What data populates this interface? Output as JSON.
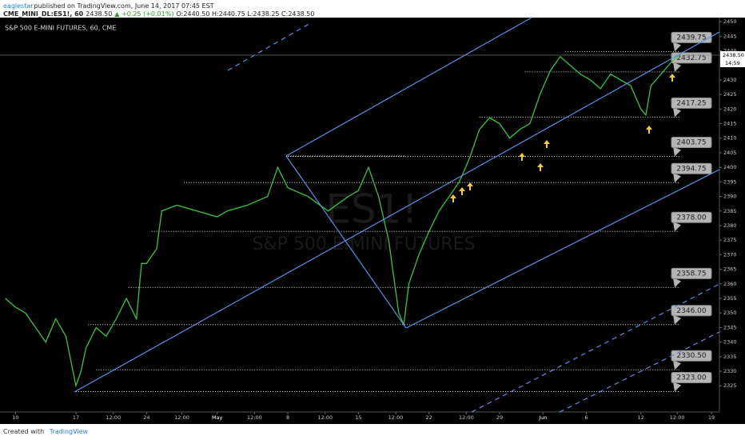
{
  "header": {
    "author": "eaglestar",
    "published": "published on TradingView.com, June 14, 2017 07:45 EST",
    "symbol": "CME_MINI_DL:ES1!, 60",
    "price": "2438.50",
    "change": "▲ +0.25 (+0.01%)",
    "ohlc": "O:2440.50 H:2440.75 L:2438.25 C:2438.50"
  },
  "chart_data": {
    "type": "line",
    "title": "S&P 500 E-MINI FUTURES, 60, CME",
    "watermark": "ES1!",
    "watermark_sub": "S&P 500 E-MINI FUTURES",
    "x": [
      -7,
      -6,
      -5,
      -4,
      -3,
      -2,
      -1,
      0,
      0.5,
      1,
      2,
      3,
      4,
      5,
      6,
      6.5,
      7,
      8,
      8.5,
      10,
      12,
      14,
      15,
      17,
      19,
      20,
      21,
      23,
      25,
      27,
      28,
      29,
      30,
      31,
      32,
      32.5,
      33,
      34,
      35,
      36,
      37,
      38,
      39,
      40,
      41,
      42,
      43,
      44,
      45,
      46,
      47,
      48,
      49,
      50,
      51,
      52,
      53,
      54,
      55,
      56,
      56.5,
      57,
      58,
      59,
      59.8
    ],
    "series": [
      {
        "name": "ES1!",
        "color": "#3cc43c",
        "values": [
          2355,
          2352,
          2350,
          2345,
          2340,
          2348,
          2342,
          2325,
          2330,
          2338,
          2345,
          2342,
          2348,
          2355,
          2348,
          2367,
          2367,
          2372,
          2385,
          2387,
          2385,
          2383,
          2385,
          2387,
          2390,
          2400,
          2393,
          2390,
          2385,
          2390,
          2392,
          2400,
          2390,
          2375,
          2350,
          2346,
          2360,
          2370,
          2378,
          2385,
          2390,
          2395,
          2403,
          2413,
          2417,
          2415,
          2410,
          2413,
          2415,
          2425,
          2433,
          2438,
          2435,
          2432,
          2430,
          2427,
          2432,
          2430,
          2428,
          2420,
          2418,
          2428,
          2432,
          2436,
          2438.5
        ]
      }
    ],
    "last_price": {
      "value": 2438.5,
      "label": "2438.50"
    },
    "countdown": "14:59",
    "levels": {
      "values": [
        2439.75,
        2432.75,
        2417.25,
        2403.75,
        2394.75,
        2378,
        2358.75,
        2346,
        2330.5,
        2323
      ],
      "value_labels": [
        "2439.75",
        "2432.75",
        "2417.25",
        "2403.75",
        "2394.75",
        "2378.00",
        "2358.75",
        "2346.00",
        "2330.50",
        "2323.00"
      ],
      "starts": [
        48.5,
        44.5,
        40,
        21,
        10.7,
        7.5,
        5.2,
        1.2,
        2,
        0
      ]
    },
    "xlim": [
      -7.53,
      63.79
    ],
    "xticks": [
      {
        "value": -6,
        "label": "10"
      },
      {
        "value": 0,
        "label": "17"
      },
      {
        "value": 3.7,
        "label": "12:00"
      },
      {
        "value": 7,
        "label": "24"
      },
      {
        "value": 10.5,
        "label": "12:00"
      },
      {
        "value": 14,
        "label": "May"
      },
      {
        "value": 17.7,
        "label": "12:00"
      },
      {
        "value": 21,
        "label": "8"
      },
      {
        "value": 24.7,
        "label": "12:00"
      },
      {
        "value": 28,
        "label": "15"
      },
      {
        "value": 31.7,
        "label": "12:00"
      },
      {
        "value": 35,
        "label": "22"
      },
      {
        "value": 38.7,
        "label": "12:00"
      },
      {
        "value": 42,
        "label": "29"
      },
      {
        "value": 46.3,
        "label": "Jun"
      },
      {
        "value": 50.6,
        "label": "6"
      },
      {
        "value": 56,
        "label": "12"
      },
      {
        "value": 59.6,
        "label": "12:00"
      },
      {
        "value": 63,
        "label": "19"
      }
    ],
    "ylim": [
      2316,
      2451.4
    ],
    "yticks": [
      2325,
      2330,
      2335,
      2340,
      2345,
      2350,
      2355,
      2360,
      2365,
      2370,
      2375,
      2380,
      2385,
      2390,
      2395,
      2400,
      2405,
      2410,
      2415,
      2420,
      2425,
      2430,
      2435,
      2440,
      2445,
      2450
    ]
  },
  "footer": {
    "created": "Created with",
    "brand": "TradingView"
  }
}
